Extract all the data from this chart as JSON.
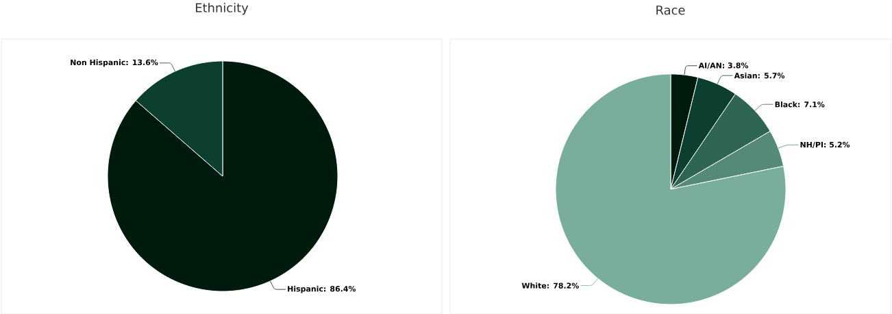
{
  "chart_data": [
    {
      "type": "pie",
      "title": "Ethnicity",
      "values": [
        86.4,
        13.6
      ],
      "colors": [
        "#001a0e",
        "#0d3f30"
      ],
      "value_labels": [
        "Hispanic: 86.4%",
        "Non Hispanic: 13.6%"
      ]
    },
    {
      "type": "pie",
      "title": "Race",
      "values": [
        3.8,
        5.7,
        7.1,
        5.2,
        78.2
      ],
      "colors": [
        "#001a0e",
        "#0d3f30",
        "#2e6553",
        "#548a76",
        "#7aae9c"
      ],
      "value_labels": [
        "AI/AN: 3.8%",
        "Asian: 5.7%",
        "Black: 7.1%",
        "NH/PI: 5.2%",
        "White: 78.2%"
      ]
    }
  ]
}
